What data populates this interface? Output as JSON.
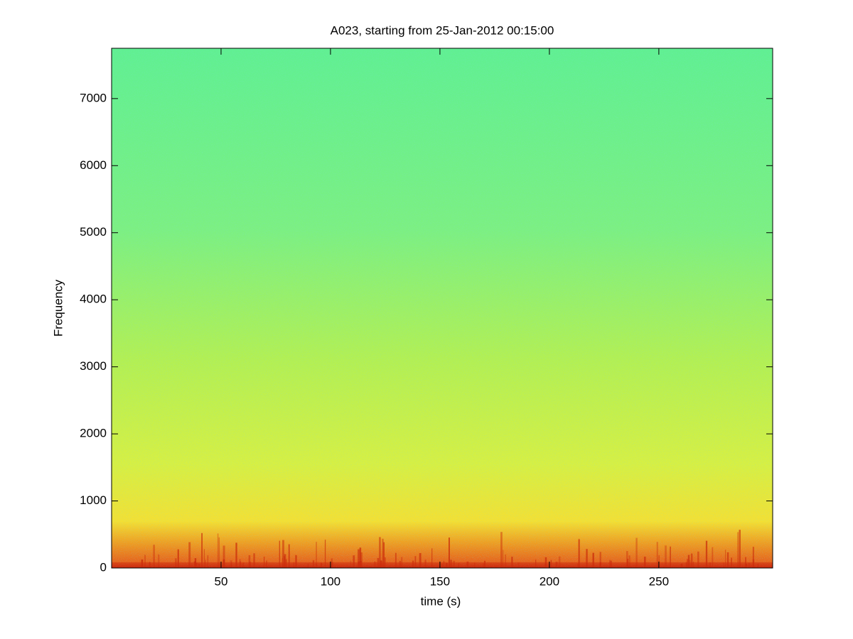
{
  "chart_data": {
    "type": "spectrogram",
    "title": "A023, starting from 25-Jan-2012 00:15:00",
    "xlabel": "time (s)",
    "ylabel": "Frequency",
    "xlim": [
      0,
      302
    ],
    "xticks": [
      50,
      100,
      150,
      200,
      250
    ],
    "ylim": [
      0,
      7750
    ],
    "yticks": [
      0,
      1000,
      2000,
      3000,
      4000,
      5000,
      6000,
      7000
    ]
  }
}
